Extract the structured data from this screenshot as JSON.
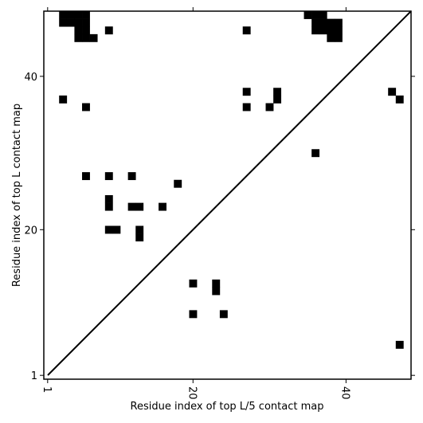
{
  "chart_data": {
    "type": "contact-map",
    "xlabel": "Residue index of top L/5 contact map",
    "ylabel": "Residue index of top L contact map",
    "xlim": [
      0.5,
      48.5
    ],
    "ylim": [
      0.5,
      48.5
    ],
    "xticks": [
      1,
      20,
      40
    ],
    "yticks": [
      1,
      20,
      40
    ],
    "color": "#000000",
    "x": [
      3,
      4,
      5,
      6,
      3,
      4,
      5,
      6,
      5,
      6,
      5,
      6,
      7,
      9,
      27,
      35,
      36,
      37,
      36,
      37,
      38,
      39,
      36,
      37,
      38,
      39,
      38,
      39,
      3,
      6,
      27,
      27,
      30,
      31,
      31,
      46,
      47,
      36,
      6,
      9,
      12,
      18,
      9,
      9,
      12,
      13,
      16,
      9,
      10,
      13,
      13,
      20,
      23,
      23,
      20,
      24,
      47
    ],
    "values": [
      48,
      48,
      48,
      48,
      47,
      47,
      47,
      47,
      46,
      46,
      45,
      45,
      45,
      46,
      46,
      48,
      48,
      48,
      47,
      47,
      47,
      47,
      46,
      46,
      46,
      46,
      45,
      45,
      37,
      36,
      38,
      36,
      36,
      37,
      38,
      38,
      37,
      30,
      27,
      27,
      27,
      26,
      24,
      23,
      23,
      23,
      23,
      20,
      20,
      20,
      19,
      13,
      13,
      12,
      9,
      9,
      5
    ]
  }
}
